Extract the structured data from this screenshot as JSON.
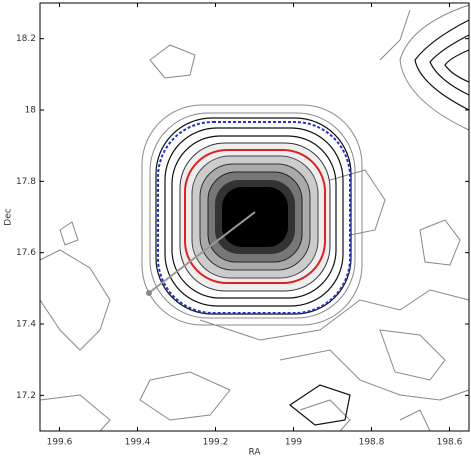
{
  "chart_data": {
    "type": "contour",
    "x_label": "RA",
    "y_label": "Dec",
    "xlim": [
      199.65,
      198.55
    ],
    "xticks": [
      199.6,
      199.4,
      199.2,
      199,
      198.8,
      198.6
    ],
    "ylim": [
      17.1,
      18.3
    ],
    "yticks": [
      17.2,
      17.4,
      17.6,
      17.8,
      18,
      18.2
    ]
  }
}
